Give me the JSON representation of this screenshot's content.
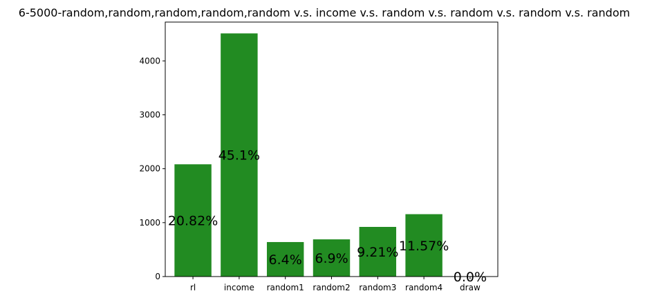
{
  "chart_data": {
    "type": "bar",
    "title": "6-5000-random,random,random,random,random v.s. income v.s. random v.s. random v.s. random v.s. random",
    "xlabel": "",
    "ylabel": "",
    "categories": [
      "rl",
      "income",
      "random1",
      "random2",
      "random3",
      "random4",
      "draw"
    ],
    "values": [
      2082,
      4510,
      640,
      690,
      921,
      1157,
      0
    ],
    "bar_labels": [
      "20.82%",
      "45.1%",
      "6.4%",
      "6.9%",
      "9.21%",
      "11.57%",
      "0.0%"
    ],
    "ylim": [
      0,
      4720
    ],
    "yticks": [
      0,
      1000,
      2000,
      3000,
      4000
    ],
    "grid": false,
    "legend": "none",
    "bar_color": "#228b22"
  }
}
